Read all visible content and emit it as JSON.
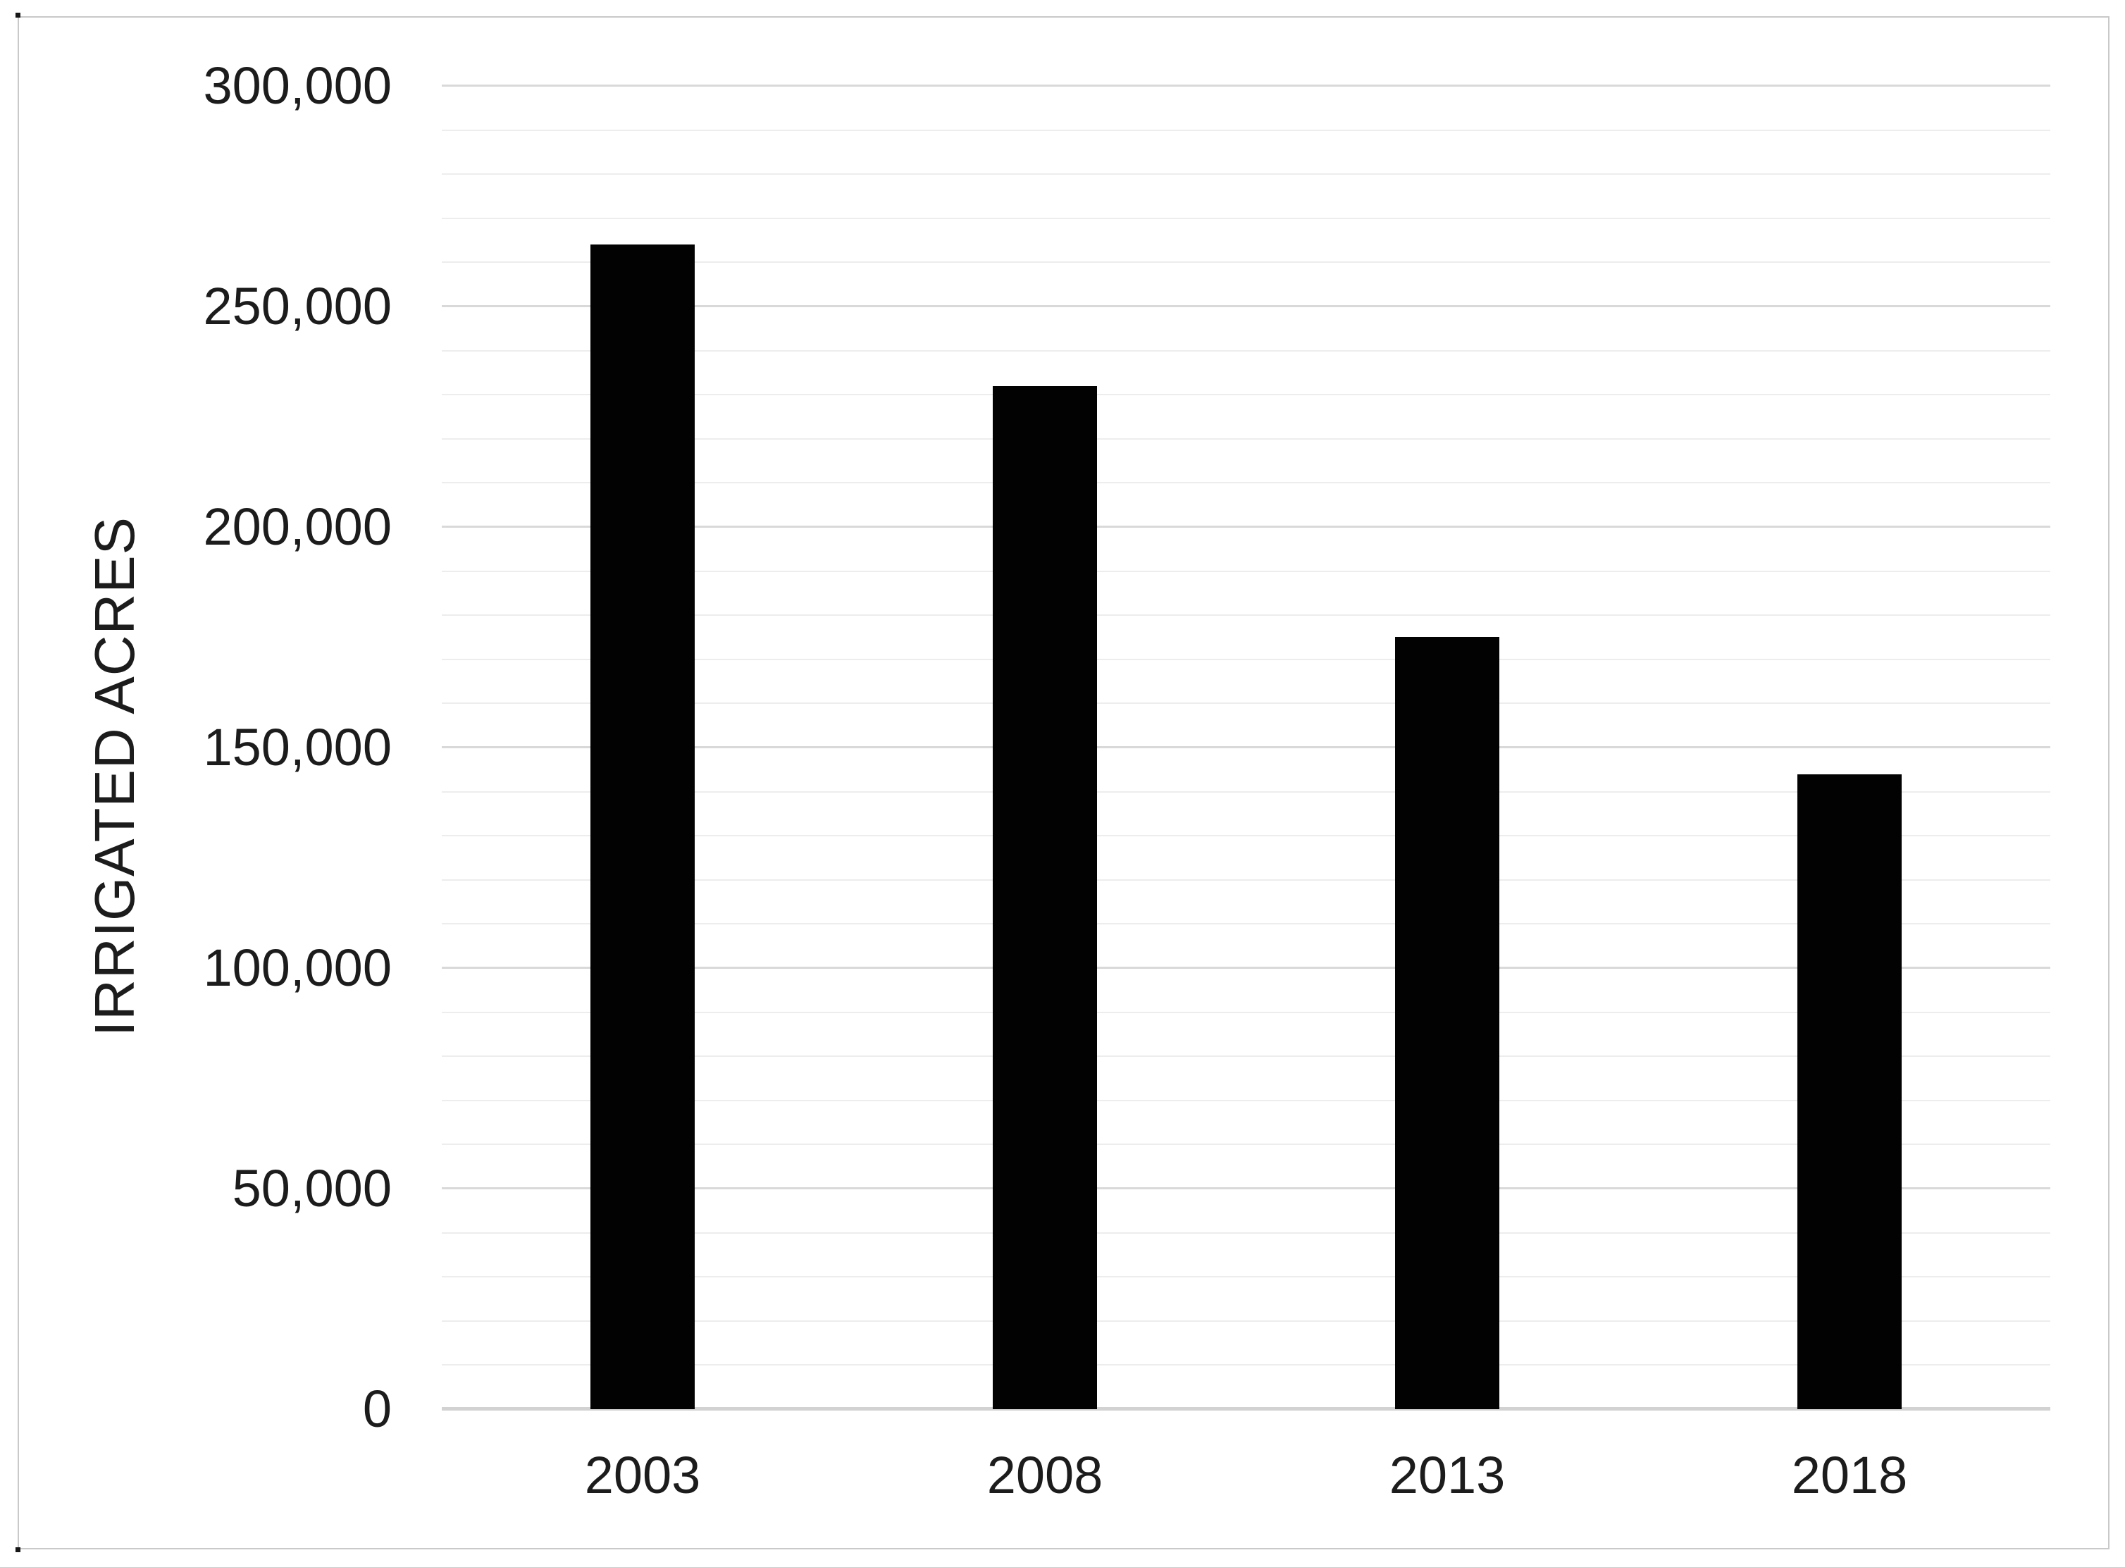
{
  "chart_data": {
    "type": "bar",
    "title": "",
    "ylabel": "IRRIGATED ACRES",
    "xlabel": "",
    "categories": [
      "2003",
      "2008",
      "2013",
      "2018"
    ],
    "values": [
      264000,
      232000,
      175000,
      144000
    ],
    "ylim": [
      0,
      300000
    ],
    "y_major_step": 50000,
    "y_minor_step": 10000,
    "y_tick_labels": [
      {
        "value": 300000,
        "label": "300,000"
      },
      {
        "value": 250000,
        "label": "250,000"
      },
      {
        "value": 200000,
        "label": "200,000"
      },
      {
        "value": 150000,
        "label": "150,000"
      },
      {
        "value": 100000,
        "label": "100,000"
      },
      {
        "value": 50000,
        "label": "50,000"
      },
      {
        "value": 0,
        "label": "0"
      }
    ],
    "grid": true,
    "legend": false,
    "bar_color": "#020202",
    "gridline_major_color": "#d9d9d9",
    "gridline_minor_color": "#ededed",
    "axis_line_color": "#d2d2d2",
    "frame_color": "#c9c9c9",
    "text_color": "#1c1c1c",
    "background_color": "#ffffff"
  }
}
